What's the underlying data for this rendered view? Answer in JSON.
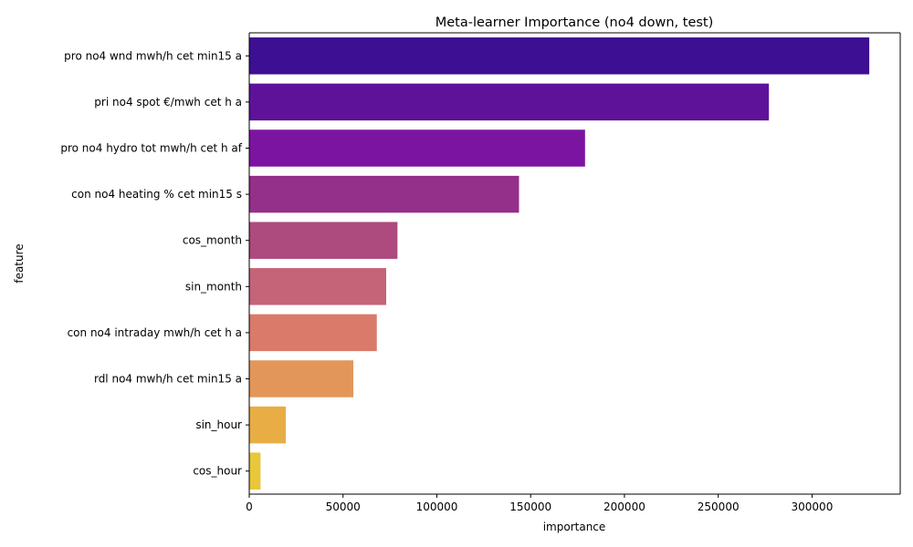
{
  "chart_data": {
    "type": "bar",
    "orientation": "horizontal",
    "title": "Meta-learner Importance (no4 down, test)",
    "xlabel": "importance",
    "ylabel": "feature",
    "categories": [
      "pro no4 wnd mwh/h cet min15 a",
      "pri no4 spot €/mwh cet h a",
      "pro no4 hydro tot mwh/h cet h af",
      "con no4 heating % cet min15 s",
      "cos_month",
      "sin_month",
      "con no4 intraday mwh/h cet h a",
      "rdl no4 mwh/h cet min15 a",
      "sin_hour",
      "cos_hour"
    ],
    "values": [
      330500,
      277000,
      179000,
      143800,
      79000,
      73000,
      68000,
      55500,
      19500,
      6000
    ],
    "colors": [
      "#3d0f92",
      "#5e129a",
      "#7b15a1",
      "#942f8a",
      "#ad4a7e",
      "#c56478",
      "#da7a6a",
      "#e3965a",
      "#e8ad45",
      "#e9c63a"
    ],
    "xlim": [
      0,
      347000
    ],
    "xticks": [
      0,
      50000,
      100000,
      150000,
      200000,
      250000,
      300000
    ],
    "xtick_labels": [
      "0",
      "50000",
      "100000",
      "150000",
      "200000",
      "250000",
      "300000"
    ],
    "grid": false,
    "legend": "none"
  }
}
